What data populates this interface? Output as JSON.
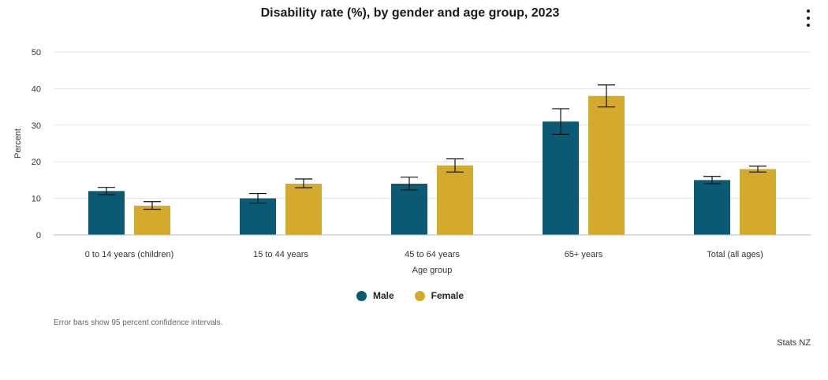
{
  "header": {
    "title": "Disability rate (%), by gender and age group, 2023",
    "menu_icon": "more-vertical-icon"
  },
  "legend": {
    "items": [
      {
        "label": "Male",
        "color": "#0b5a73"
      },
      {
        "label": "Female",
        "color": "#d4aa2c"
      }
    ]
  },
  "footer": {
    "note": "Error bars show 95 percent confidence intervals.",
    "source": "Stats NZ"
  },
  "chart_data": {
    "type": "bar",
    "title": "Disability rate (%), by gender and age group, 2023",
    "xlabel": "Age group",
    "ylabel": "Percent",
    "ylim": [
      0,
      50
    ],
    "yticks": [
      0,
      10,
      20,
      30,
      40,
      50
    ],
    "grid": true,
    "legend_position": "bottom-center",
    "categories": [
      "0 to 14 years (children)",
      "15 to 44 years",
      "45 to 64 years",
      "65+ years",
      "Total (all ages)"
    ],
    "series": [
      {
        "name": "Male",
        "color": "#0b5a73",
        "values": [
          12,
          10,
          14,
          31,
          15
        ],
        "ci_low": [
          11,
          8.7,
          12.3,
          27.5,
          14
        ],
        "ci_high": [
          13,
          11.3,
          15.8,
          34.5,
          16
        ]
      },
      {
        "name": "Female",
        "color": "#d4aa2c",
        "values": [
          8,
          14,
          19,
          38,
          18
        ],
        "ci_low": [
          7,
          12.9,
          17.2,
          35,
          17.2
        ],
        "ci_high": [
          9.1,
          15.3,
          20.8,
          41,
          18.8
        ]
      }
    ],
    "annotations": [
      "Error bars show 95 percent confidence intervals."
    ]
  }
}
